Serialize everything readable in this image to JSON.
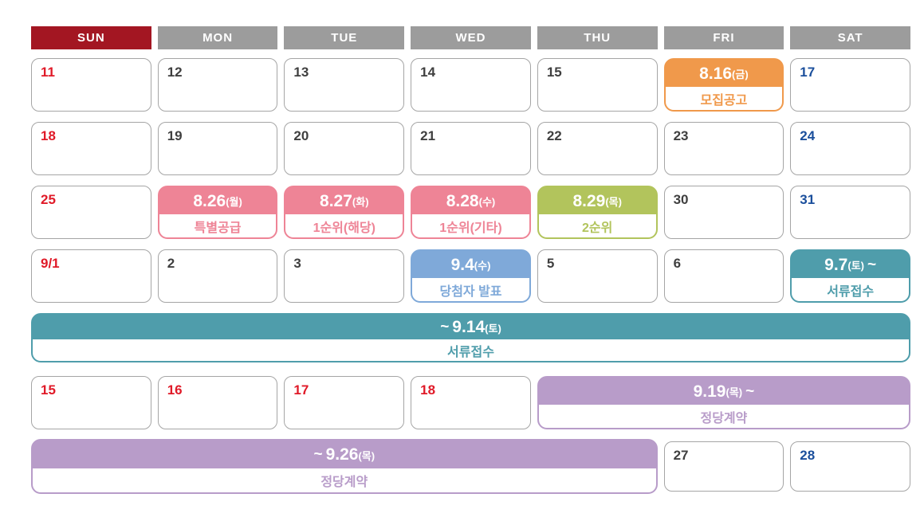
{
  "weekday_labels": [
    "SUN",
    "MON",
    "TUE",
    "WED",
    "THU",
    "FRI",
    "SAT"
  ],
  "colors": {
    "sun-header": "#a31622",
    "header-gray": "#9c9c9c",
    "holiday-red": "#e01a28",
    "saturday-blue": "#1b4f9c",
    "weekday-dark": "#3f3f3f",
    "orange": "#f0994b",
    "pink": "#ee8496",
    "green": "#b2c45c",
    "sky-blue": "#7fa9d9",
    "teal": "#4f9dab",
    "purple": "#b89cc9",
    "cell-border": "#a5a5a5"
  },
  "weeks": [
    {
      "cells": [
        {
          "num": "11"
        },
        {
          "num": "12"
        },
        {
          "num": "13"
        },
        {
          "num": "14"
        },
        {
          "num": "15"
        },
        {
          "date": "8.16",
          "day": "(금)",
          "label": "모집공고"
        },
        {
          "num": "17"
        }
      ]
    },
    {
      "cells": [
        {
          "num": "18"
        },
        {
          "num": "19"
        },
        {
          "num": "20"
        },
        {
          "num": "21"
        },
        {
          "num": "22"
        },
        {
          "num": "23"
        },
        {
          "num": "24"
        }
      ]
    },
    {
      "cells": [
        {
          "num": "25"
        },
        {
          "date": "8.26",
          "day": "(월)",
          "label": "특별공급"
        },
        {
          "date": "8.27",
          "day": "(화)",
          "label": "1순위(해당)"
        },
        {
          "date": "8.28",
          "day": "(수)",
          "label": "1순위(기타)"
        },
        {
          "date": "8.29",
          "day": "(목)",
          "label": "2순위"
        },
        {
          "num": "30"
        },
        {
          "num": "31"
        }
      ]
    },
    {
      "cells": [
        {
          "num": "9/1"
        },
        {
          "num": "2"
        },
        {
          "num": "3"
        },
        {
          "date": "9.4",
          "day": "(수)",
          "label": "당첨자 발표"
        },
        {
          "num": "5"
        },
        {
          "num": "6"
        },
        {
          "date": "9.7",
          "day": "(토)",
          "suffix": "~",
          "label": "서류접수"
        }
      ]
    },
    {
      "cells": [
        {
          "prefix": "~",
          "date": "9.14",
          "day": "(토)",
          "label": "서류접수"
        }
      ]
    },
    {
      "cells": [
        {
          "num": "15"
        },
        {
          "num": "16"
        },
        {
          "num": "17"
        },
        {
          "num": "18"
        },
        {
          "date": "9.19",
          "day": "(목)",
          "suffix": "~",
          "label": "정당계약"
        }
      ]
    },
    {
      "cells": [
        {
          "prefix": "~",
          "date": "9.26",
          "day": "(목)",
          "label": "정당계약"
        },
        {
          "num": "27"
        },
        {
          "num": "28"
        }
      ]
    }
  ]
}
